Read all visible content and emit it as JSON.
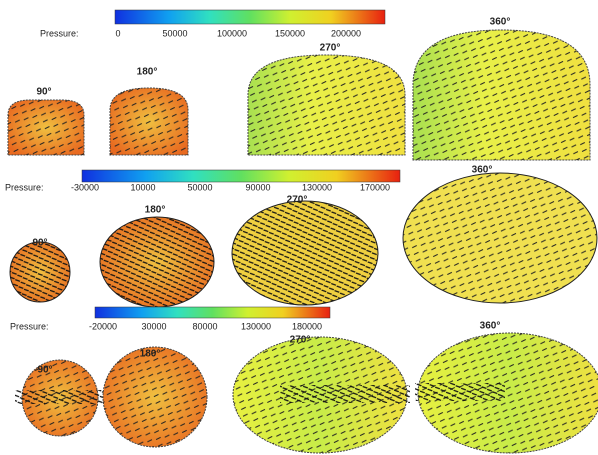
{
  "rows": [
    {
      "legend_label": "Pressure:",
      "ticks": [
        "0",
        "50000",
        "100000",
        "150000",
        "200000"
      ],
      "panels": [
        "90°",
        "180°",
        "270°",
        "360°"
      ]
    },
    {
      "legend_label": "Pressure:",
      "ticks": [
        "-30000",
        "10000",
        "50000",
        "90000",
        "130000",
        "170000"
      ],
      "panels": [
        "90°",
        "180°",
        "270°",
        "360°"
      ]
    },
    {
      "legend_label": "Pressure:",
      "ticks": [
        "-20000",
        "30000",
        "80000",
        "130000",
        "180000"
      ],
      "panels": [
        "90°",
        "180°",
        "270°",
        "360°"
      ]
    }
  ]
}
